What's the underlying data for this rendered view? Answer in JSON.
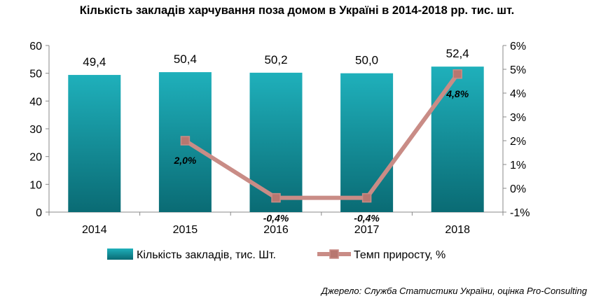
{
  "title": "Кількість закладів харчування поза домом в Україні в 2014-2018 рр. тис. шт.",
  "source": "Джерело: Служба Статистики України, оцінка Pro-Consulting",
  "colors": {
    "bar_top": "#1fb0bb",
    "bar_bottom": "#0a6b74",
    "line": "#c98c86",
    "marker": "#b87770"
  },
  "chart_data": {
    "type": "bar",
    "categories": [
      "2014",
      "2015",
      "2016",
      "2017",
      "2018"
    ],
    "series": [
      {
        "name": "Кількість закладів, тис. Шт.",
        "type": "bar",
        "axis": "left",
        "values": [
          49.4,
          50.4,
          50.2,
          50.0,
          52.4
        ],
        "labels": [
          "49,4",
          "50,4",
          "50,2",
          "50,0",
          "52,4"
        ]
      },
      {
        "name": "Темп приросту, %",
        "type": "line",
        "axis": "right",
        "values": [
          null,
          2.0,
          -0.4,
          -0.4,
          4.8
        ],
        "labels": [
          "",
          "2,0%",
          "-0,4%",
          "-0,4%",
          "4,8%"
        ]
      }
    ],
    "left_axis": {
      "min": 0,
      "max": 60,
      "step": 10,
      "ticks": [
        "0",
        "10",
        "20",
        "30",
        "40",
        "50",
        "60"
      ]
    },
    "right_axis": {
      "min": -1,
      "max": 6,
      "step": 1,
      "ticks": [
        "-1%",
        "0%",
        "1%",
        "2%",
        "3%",
        "4%",
        "5%",
        "6%"
      ]
    },
    "grid": false,
    "legend": "bottom"
  }
}
